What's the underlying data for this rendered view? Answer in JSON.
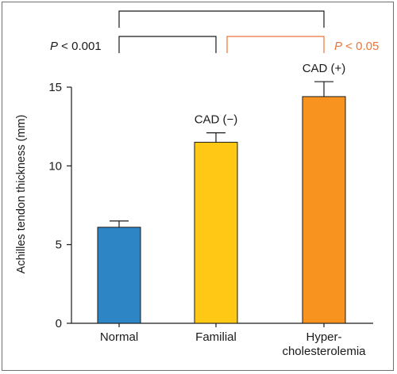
{
  "chart_data": {
    "type": "bar",
    "categories": [
      "Normal",
      "Familial",
      "Hyper-\ncholesterolemia"
    ],
    "values": [
      6.1,
      11.5,
      14.4
    ],
    "errors": [
      0.4,
      0.6,
      0.95
    ],
    "bar_colors": [
      "#2e85c6",
      "#ffc815",
      "#f7931e"
    ],
    "bar_labels": [
      "",
      "CAD (−)",
      "CAD (+)"
    ],
    "ylabel": "Achilles tendon thickness (mm)",
    "xlabel": "",
    "title": "",
    "ylim": [
      0,
      15
    ],
    "yticks": [
      0,
      5,
      10,
      15
    ],
    "grid": false,
    "comparisons": [
      {
        "from": 0,
        "to": 2,
        "label_p": "",
        "label_rest": "",
        "color": "#1a1a1a"
      },
      {
        "from": 0,
        "to": 1,
        "label_p": "P",
        "label_rest": " < 0.001",
        "color": "#1a1a1a"
      },
      {
        "from": 1,
        "to": 2,
        "label_p": "P",
        "label_rest": " < 0.05",
        "color": "#e8763a"
      }
    ]
  }
}
